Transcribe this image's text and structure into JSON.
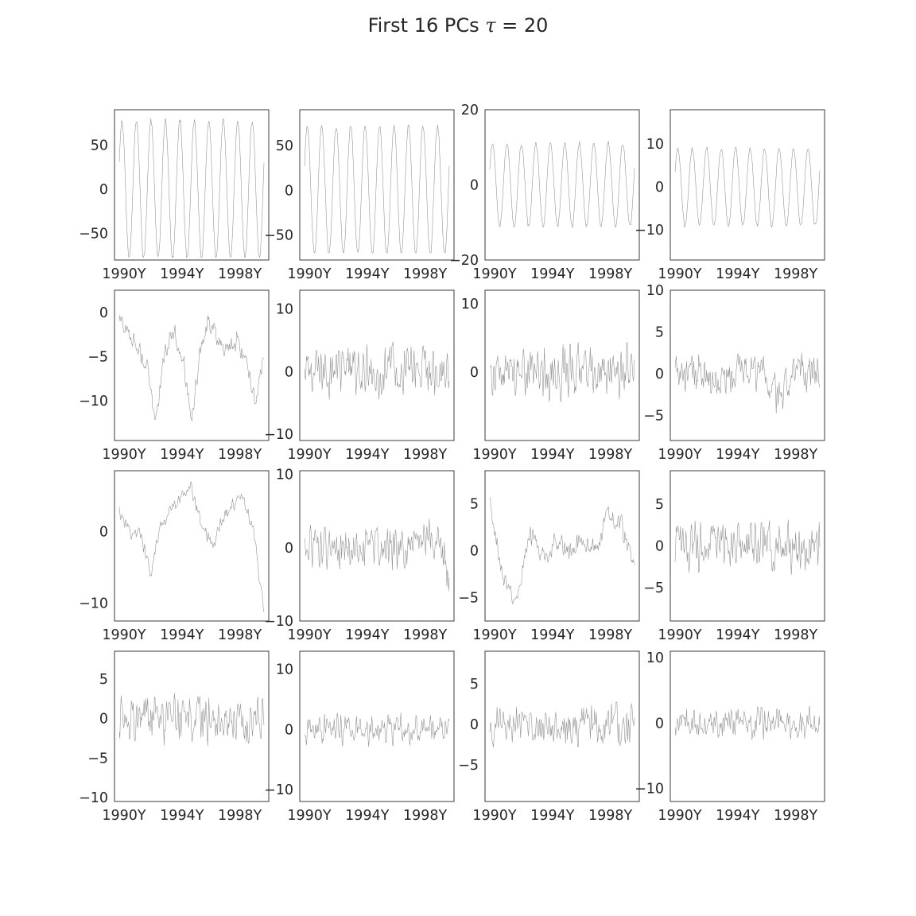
{
  "figure": {
    "title_text": "First 16 PCs ",
    "title_symbol": "τ",
    "title_value": " = 20"
  },
  "chart_data": [
    {
      "type": "line",
      "title": "",
      "series": [
        {
          "name": "",
          "color": "#8c8c8c",
          "x_range": [
            1990,
            2000
          ],
          "y_range": [
            -77,
            80
          ],
          "frequency": 12,
          "amplitude": 78,
          "noise": 0.05,
          "trend": [
            0
          ]
        }
      ],
      "ylim": [
        -80,
        90
      ],
      "yticks": [
        50,
        0,
        -50
      ],
      "yticklabels": [
        "50",
        "0",
        "−50"
      ],
      "xticks": [
        1990,
        1994,
        1998
      ],
      "xticklabels": [
        "1990Y",
        "1994Y",
        "1998Y"
      ],
      "grid": false
    },
    {
      "type": "line",
      "title": "",
      "series": [
        {
          "name": "",
          "color": "#8c8c8c",
          "x_range": [
            1990,
            2000
          ],
          "y_range": [
            -70,
            77
          ],
          "frequency": 12,
          "amplitude": 72,
          "noise": 0.05,
          "trend": [
            0
          ]
        }
      ],
      "ylim": [
        -78,
        90
      ],
      "yticks": [
        50,
        0,
        -50
      ],
      "yticklabels": [
        "50",
        "0",
        "−50"
      ],
      "xticks": [
        1990,
        1994,
        1998
      ],
      "xticklabels": [
        "1990Y",
        "1994Y",
        "1998Y"
      ],
      "grid": false
    },
    {
      "type": "line",
      "title": "",
      "series": [
        {
          "name": "",
          "color": "#8c8c8c",
          "x_range": [
            1990,
            2000
          ],
          "y_range": [
            -17,
            18
          ],
          "frequency": 12,
          "amplitude": 11,
          "noise": 0.25,
          "trend": [
            0
          ]
        }
      ],
      "ylim": [
        -20,
        20
      ],
      "yticks": [
        20,
        0,
        -20
      ],
      "yticklabels": [
        "20",
        "0",
        "−20"
      ],
      "xticks": [
        1990,
        1994,
        1998
      ],
      "xticklabels": [
        "1990Y",
        "1994Y",
        "1998Y"
      ],
      "grid": false
    },
    {
      "type": "line",
      "title": "",
      "series": [
        {
          "name": "",
          "color": "#8c8c8c",
          "x_range": [
            1990,
            2000
          ],
          "y_range": [
            -17,
            16
          ],
          "frequency": 12,
          "amplitude": 9,
          "noise": 0.35,
          "trend": [
            0
          ]
        }
      ],
      "ylim": [
        -17,
        18
      ],
      "yticks": [
        10,
        0,
        -10
      ],
      "yticklabels": [
        "10",
        "0",
        "−10"
      ],
      "xticks": [
        1990,
        1994,
        1998
      ],
      "xticklabels": [
        "1990Y",
        "1994Y",
        "1998Y"
      ],
      "grid": false
    },
    {
      "type": "line",
      "title": "",
      "series": [
        {
          "name": "",
          "color": "#8c8c8c",
          "x_range": [
            1990,
            2000
          ],
          "y_range": [
            -13.5,
            2
          ],
          "frequency": 0,
          "amplitude": 0,
          "noise": 1.4,
          "trend": [
            -1,
            -2,
            -4,
            -6,
            -12,
            -5,
            -2,
            -5,
            -12,
            -4,
            -1,
            -3,
            -4,
            -3,
            -5,
            -10,
            -5
          ]
        }
      ],
      "ylim": [
        -14.5,
        2.5
      ],
      "yticks": [
        0,
        -5,
        -10
      ],
      "yticklabels": [
        "0",
        "−5",
        "−10"
      ],
      "xticks": [
        1990,
        1994,
        1998
      ],
      "xticklabels": [
        "1990Y",
        "1994Y",
        "1998Y"
      ],
      "grid": false
    },
    {
      "type": "line",
      "title": "",
      "series": [
        {
          "name": "",
          "color": "#8c8c8c",
          "x_range": [
            1990,
            2000
          ],
          "y_range": [
            -10,
            12
          ],
          "frequency": 0,
          "amplitude": 0,
          "noise": 5,
          "trend": [
            0
          ]
        }
      ],
      "ylim": [
        -11,
        13
      ],
      "yticks": [
        10,
        0,
        -10
      ],
      "yticklabels": [
        "10",
        "0",
        "−10"
      ],
      "xticks": [
        1990,
        1994,
        1998
      ],
      "xticklabels": [
        "1990Y",
        "1994Y",
        "1998Y"
      ],
      "grid": false
    },
    {
      "type": "line",
      "title": "",
      "series": [
        {
          "name": "",
          "color": "#8c8c8c",
          "x_range": [
            1990,
            2000
          ],
          "y_range": [
            -9,
            11
          ],
          "frequency": 0,
          "amplitude": 0,
          "noise": 4.5,
          "trend": [
            0
          ]
        }
      ],
      "ylim": [
        -10,
        12
      ],
      "yticks": [
        10,
        0
      ],
      "yticklabels": [
        "10",
        "0"
      ],
      "xticks": [
        1990,
        1994,
        1998
      ],
      "xticklabels": [
        "1990Y",
        "1994Y",
        "1998Y"
      ],
      "grid": false
    },
    {
      "type": "line",
      "title": "",
      "series": [
        {
          "name": "",
          "color": "#8c8c8c",
          "x_range": [
            1990,
            2000
          ],
          "y_range": [
            -7,
            9
          ],
          "frequency": 0,
          "amplitude": 0,
          "noise": 3,
          "trend": [
            0,
            0,
            -1,
            0,
            0,
            -3,
            0,
            1
          ]
        }
      ],
      "ylim": [
        -8,
        10
      ],
      "yticks": [
        10,
        5,
        0,
        -5
      ],
      "yticklabels": [
        "10",
        "5",
        "0",
        "−5"
      ],
      "xticks": [
        1990,
        1994,
        1998
      ],
      "xticklabels": [
        "1990Y",
        "1994Y",
        "1998Y"
      ],
      "grid": false
    },
    {
      "type": "line",
      "title": "",
      "series": [
        {
          "name": "",
          "color": "#8c8c8c",
          "x_range": [
            1990,
            2000
          ],
          "y_range": [
            -11.5,
            7
          ],
          "frequency": 0,
          "amplitude": 0,
          "noise": 1.2,
          "trend": [
            3,
            0,
            0,
            -6,
            1,
            3,
            5,
            6,
            1,
            -2,
            2,
            4,
            5,
            0,
            -11
          ]
        }
      ],
      "ylim": [
        -12.5,
        8.5
      ],
      "yticks": [
        0,
        -10
      ],
      "yticklabels": [
        "0",
        "−10"
      ],
      "xticks": [
        1990,
        1994,
        1998
      ],
      "xticklabels": [
        "1990Y",
        "1994Y",
        "1998Y"
      ],
      "grid": false
    },
    {
      "type": "line",
      "title": "",
      "series": [
        {
          "name": "",
          "color": "#8c8c8c",
          "x_range": [
            1990,
            2000
          ],
          "y_range": [
            -9,
            10
          ],
          "frequency": 0,
          "amplitude": 0,
          "noise": 3.2,
          "trend": [
            0,
            0,
            0,
            0,
            0,
            0,
            0,
            2,
            -3
          ]
        }
      ],
      "ylim": [
        -10,
        10.5
      ],
      "yticks": [
        10,
        0,
        -10
      ],
      "yticklabels": [
        "10",
        "0",
        "−10"
      ],
      "xticks": [
        1990,
        1994,
        1998
      ],
      "xticklabels": [
        "1990Y",
        "1994Y",
        "1998Y"
      ],
      "grid": false
    },
    {
      "type": "line",
      "title": "",
      "series": [
        {
          "name": "",
          "color": "#8c8c8c",
          "x_range": [
            1990,
            2000
          ],
          "y_range": [
            -7,
            8
          ],
          "frequency": 0,
          "amplitude": 0,
          "noise": 1.4,
          "trend": [
            5,
            -3,
            -6,
            2,
            -1,
            1,
            0,
            1,
            0,
            4,
            3,
            -2
          ]
        }
      ],
      "ylim": [
        -7.5,
        8.5
      ],
      "yticks": [
        5,
        0,
        -5
      ],
      "yticklabels": [
        "5",
        "0",
        "−5"
      ],
      "xticks": [
        1990,
        1994,
        1998
      ],
      "xticklabels": [
        "1990Y",
        "1994Y",
        "1998Y"
      ],
      "grid": false
    },
    {
      "type": "line",
      "title": "",
      "series": [
        {
          "name": "",
          "color": "#8c8c8c",
          "x_range": [
            1990,
            2000
          ],
          "y_range": [
            -8,
            8
          ],
          "frequency": 0,
          "amplitude": 0,
          "noise": 3.5,
          "trend": [
            0
          ]
        }
      ],
      "ylim": [
        -9,
        9
      ],
      "yticks": [
        5,
        0,
        -5
      ],
      "yticklabels": [
        "5",
        "0",
        "−5"
      ],
      "xticks": [
        1990,
        1994,
        1998
      ],
      "xticklabels": [
        "1990Y",
        "1994Y",
        "1998Y"
      ],
      "grid": false
    },
    {
      "type": "line",
      "title": "",
      "series": [
        {
          "name": "",
          "color": "#8c8c8c",
          "x_range": [
            1990,
            2000
          ],
          "y_range": [
            -9.5,
            7.5
          ],
          "frequency": 0,
          "amplitude": 0,
          "noise": 3.6,
          "trend": [
            0
          ]
        }
      ],
      "ylim": [
        -10.5,
        8.5
      ],
      "yticks": [
        5,
        0,
        -5,
        -10
      ],
      "yticklabels": [
        "5",
        "0",
        "−5",
        "−10"
      ],
      "xticks": [
        1990,
        1994,
        1998
      ],
      "xticklabels": [
        "1990Y",
        "1994Y",
        "1998Y"
      ],
      "grid": false
    },
    {
      "type": "line",
      "title": "",
      "series": [
        {
          "name": "",
          "color": "#8c8c8c",
          "x_range": [
            1990,
            2000
          ],
          "y_range": [
            -11,
            12
          ],
          "frequency": 0,
          "amplitude": 0,
          "noise": 3,
          "trend": [
            0
          ]
        }
      ],
      "ylim": [
        -12,
        13
      ],
      "yticks": [
        10,
        0,
        -10
      ],
      "yticklabels": [
        "10",
        "0",
        "−10"
      ],
      "xticks": [
        1990,
        1994,
        1998
      ],
      "xticklabels": [
        "1990Y",
        "1994Y",
        "1998Y"
      ],
      "grid": false
    },
    {
      "type": "line",
      "title": "",
      "series": [
        {
          "name": "",
          "color": "#8c8c8c",
          "x_range": [
            1990,
            2000
          ],
          "y_range": [
            -8.5,
            8
          ],
          "frequency": 0,
          "amplitude": 0,
          "noise": 3,
          "trend": [
            0
          ]
        }
      ],
      "ylim": [
        -9.5,
        9
      ],
      "yticks": [
        5,
        0,
        -5
      ],
      "yticklabels": [
        "5",
        "0",
        "−5"
      ],
      "xticks": [
        1990,
        1994,
        1998
      ],
      "xticklabels": [
        "1990Y",
        "1994Y",
        "1998Y"
      ],
      "grid": false
    },
    {
      "type": "line",
      "title": "",
      "series": [
        {
          "name": "",
          "color": "#8c8c8c",
          "x_range": [
            1990,
            2000
          ],
          "y_range": [
            -11,
            10
          ],
          "frequency": 0,
          "amplitude": 0,
          "noise": 2.8,
          "trend": [
            0
          ]
        }
      ],
      "ylim": [
        -12,
        11
      ],
      "yticks": [
        10,
        0,
        -10
      ],
      "yticklabels": [
        "10",
        "0",
        "−10"
      ],
      "xticks": [
        1990,
        1994,
        1998
      ],
      "xticklabels": [
        "1990Y",
        "1994Y",
        "1998Y"
      ],
      "grid": false
    }
  ]
}
